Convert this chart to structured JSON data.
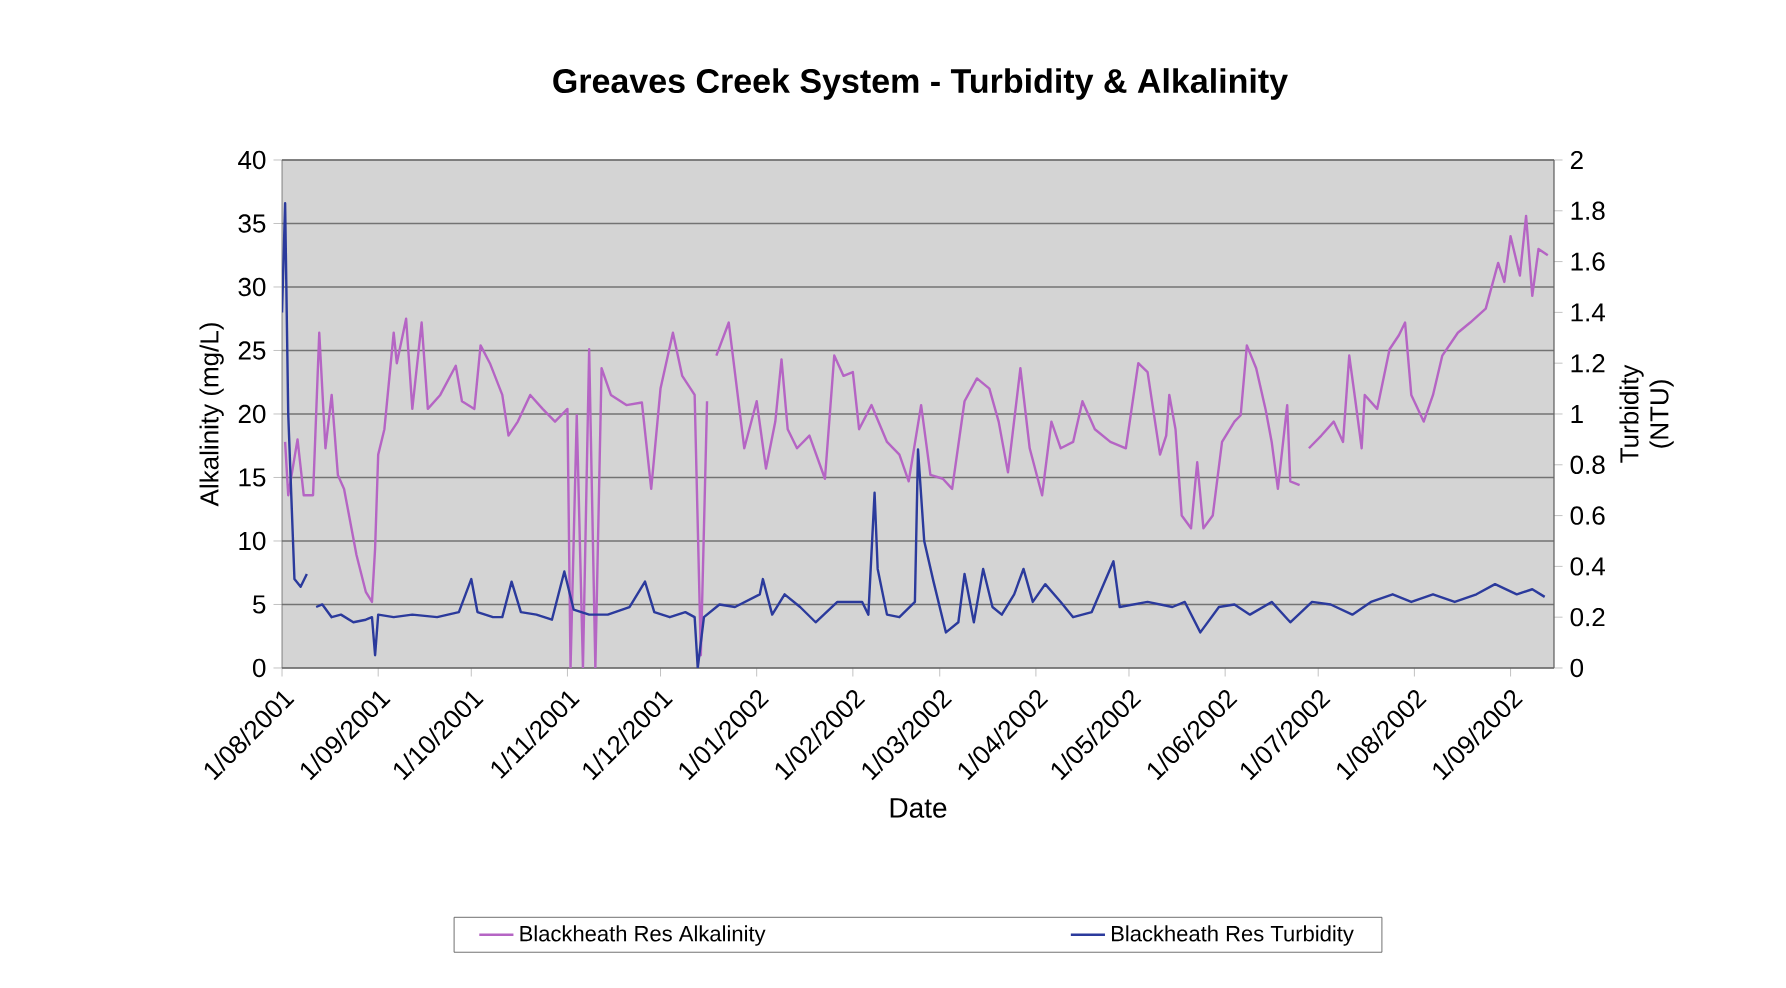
{
  "chart_data": {
    "type": "line",
    "title": "Greaves Creek System - Turbidity & Alkalinity",
    "xlabel": "Date",
    "ylabel": "Alkalinity (mg/L)",
    "y2label": "Turbidity (NTU)",
    "xlim": [
      "2001-08-01",
      "2002-09-15"
    ],
    "xticks": [
      {
        "value": "2001-08-01",
        "label": "1/08/2001"
      },
      {
        "value": "2001-09-01",
        "label": "1/09/2001"
      },
      {
        "value": "2001-10-01",
        "label": "1/10/2001"
      },
      {
        "value": "2001-11-01",
        "label": "1/11/2001"
      },
      {
        "value": "2001-12-01",
        "label": "1/12/2001"
      },
      {
        "value": "2002-01-01",
        "label": "1/01/2002"
      },
      {
        "value": "2002-02-01",
        "label": "1/02/2002"
      },
      {
        "value": "2002-03-01",
        "label": "1/03/2002"
      },
      {
        "value": "2002-04-01",
        "label": "1/04/2002"
      },
      {
        "value": "2002-05-01",
        "label": "1/05/2002"
      },
      {
        "value": "2002-06-01",
        "label": "1/06/2002"
      },
      {
        "value": "2002-07-01",
        "label": "1/07/2002"
      },
      {
        "value": "2002-08-01",
        "label": "1/08/2002"
      },
      {
        "value": "2002-09-01",
        "label": "1/09/2002"
      }
    ],
    "ylim": [
      0,
      40
    ],
    "yticks": [
      0,
      5,
      10,
      15,
      20,
      25,
      30,
      35,
      40
    ],
    "y2lim": [
      0,
      2
    ],
    "y2ticks": [
      0,
      0.2,
      0.4,
      0.6,
      0.8,
      1,
      1.2,
      1.4,
      1.6,
      1.8,
      2
    ],
    "grid": "y",
    "legend": "bottom",
    "marker": "none",
    "line_style": "solid",
    "series": [
      {
        "name": "Blackheath Res Alkalinity",
        "color": "#b565c4",
        "x": [
          "2001-08-02",
          "2001-08-03",
          "2001-08-06",
          "2001-08-08",
          "2001-08-11",
          "2001-08-13",
          "2001-08-15",
          "2001-08-17",
          "2001-08-19",
          "2001-08-21",
          "2001-08-25",
          "2001-08-28",
          "2001-08-30",
          "2001-08-31",
          "2001-09-01",
          "2001-09-03",
          "2001-09-06",
          "2001-09-07",
          "2001-09-10",
          "2001-09-12",
          "2001-09-15",
          "2001-09-17",
          "2001-09-21",
          "2001-09-26",
          "2001-09-28",
          "2001-10-02",
          "2001-10-04",
          "2001-10-07",
          "2001-10-11",
          "2001-10-13",
          "2001-10-16",
          "2001-10-20",
          "2001-10-24",
          "2001-10-28",
          "2001-11-01",
          "2001-11-02",
          "2001-11-04",
          "2001-11-06",
          "2001-11-08",
          "2001-11-10",
          "2001-11-12",
          "2001-11-15",
          "2001-11-20",
          "2001-11-25",
          "2001-11-28",
          "2001-12-01",
          "2001-12-05",
          "2001-12-08",
          "2001-12-12",
          "2001-12-14",
          "2001-12-16",
          "2001-12-17",
          "2001-12-19",
          "2001-12-23",
          "2001-12-28",
          "2002-01-01",
          "2002-01-04",
          "2002-01-07",
          "2002-01-09",
          "2002-01-11",
          "2002-01-14",
          "2002-01-18",
          "2002-01-23",
          "2002-01-26",
          "2002-01-29",
          "2002-02-01",
          "2002-02-03",
          "2002-02-07",
          "2002-02-12",
          "2002-02-16",
          "2002-02-19",
          "2002-02-23",
          "2002-02-26",
          "2002-03-02",
          "2002-03-05",
          "2002-03-09",
          "2002-03-13",
          "2002-03-17",
          "2002-03-20",
          "2002-03-23",
          "2002-03-27",
          "2002-03-30",
          "2002-04-03",
          "2002-04-06",
          "2002-04-09",
          "2002-04-13",
          "2002-04-16",
          "2002-04-20",
          "2002-04-25",
          "2002-04-30",
          "2002-05-04",
          "2002-05-07",
          "2002-05-11",
          "2002-05-13",
          "2002-05-14",
          "2002-05-16",
          "2002-05-18",
          "2002-05-21",
          "2002-05-23",
          "2002-05-25",
          "2002-05-28",
          "2002-05-31",
          "2002-06-04",
          "2002-06-06",
          "2002-06-08",
          "2002-06-11",
          "2002-06-14",
          "2002-06-16",
          "2002-06-18",
          "2002-06-21",
          "2002-06-22",
          "2002-06-25",
          "2002-06-26",
          "2002-06-28",
          "2002-07-02",
          "2002-07-06",
          "2002-07-09",
          "2002-07-11",
          "2002-07-13",
          "2002-07-15",
          "2002-07-16",
          "2002-07-20",
          "2002-07-24",
          "2002-07-27",
          "2002-07-29",
          "2002-07-31",
          "2002-08-04",
          "2002-08-07",
          "2002-08-10",
          "2002-08-15",
          "2002-08-19",
          "2002-08-24",
          "2002-08-28",
          "2002-08-30",
          "2002-09-01",
          "2002-09-04",
          "2002-09-06",
          "2002-09-08",
          "2002-09-10",
          "2002-09-13"
        ],
        "values": [
          17.8,
          13.6,
          18,
          13.6,
          13.6,
          26.4,
          17.3,
          21.5,
          15.2,
          14.1,
          8.9,
          6,
          5.2,
          9.4,
          16.8,
          18.8,
          26.4,
          24,
          27.5,
          20.4,
          27.2,
          20.4,
          21.5,
          23.8,
          21,
          20.4,
          25.4,
          24,
          21.5,
          18.3,
          19.4,
          21.5,
          20.4,
          19.4,
          20.4,
          0,
          19.9,
          0,
          25.1,
          0,
          23.6,
          21.5,
          20.7,
          20.9,
          14.1,
          22,
          26.4,
          23,
          21.5,
          1,
          21,
          null,
          24.6,
          27.2,
          17.3,
          21,
          15.7,
          19.4,
          24.3,
          18.8,
          17.3,
          18.3,
          14.9,
          24.6,
          23,
          23.3,
          18.8,
          20.7,
          17.8,
          16.8,
          14.7,
          20.7,
          15.2,
          14.9,
          14.1,
          21,
          22.8,
          22,
          19.4,
          15.4,
          23.6,
          17.3,
          13.6,
          19.4,
          17.3,
          17.8,
          21,
          18.8,
          17.8,
          17.3,
          24,
          23.3,
          16.8,
          18.3,
          21.5,
          18.8,
          12,
          11,
          16.2,
          11,
          12,
          17.8,
          19.4,
          19.9,
          25.4,
          23.6,
          20.4,
          17.8,
          14.1,
          20.7,
          14.7,
          14.4,
          null,
          17.3,
          18.3,
          19.4,
          17.8,
          24.6,
          21,
          17.3,
          21.5,
          20.4,
          25.1,
          26.2,
          27.2,
          21.5,
          19.4,
          21.5,
          24.6,
          26.4,
          27.2,
          28.3,
          31.9,
          30.4,
          34,
          30.9,
          35.6,
          29.3,
          33,
          32.5
        ]
      },
      {
        "name": "Blackheath Res Turbidity",
        "color": "#2b3a9c",
        "axis": "y2",
        "x": [
          "2001-08-01",
          "2001-08-02",
          "2001-08-03",
          "2001-08-05",
          "2001-08-07",
          "2001-08-09",
          "2001-08-10",
          "2001-08-12",
          "2001-08-14",
          "2001-08-17",
          "2001-08-20",
          "2001-08-24",
          "2001-08-28",
          "2001-08-30",
          "2001-08-31",
          "2001-09-01",
          "2001-09-06",
          "2001-09-12",
          "2001-09-20",
          "2001-09-27",
          "2001-10-01",
          "2001-10-03",
          "2001-10-08",
          "2001-10-11",
          "2001-10-14",
          "2001-10-17",
          "2001-10-22",
          "2001-10-27",
          "2001-10-31",
          "2001-11-03",
          "2001-11-08",
          "2001-11-14",
          "2001-11-21",
          "2001-11-26",
          "2001-11-29",
          "2001-12-04",
          "2001-12-09",
          "2001-12-12",
          "2001-12-13",
          "2001-12-15",
          "2001-12-20",
          "2001-12-25",
          "2002-01-02",
          "2002-01-03",
          "2002-01-06",
          "2002-01-10",
          "2002-01-15",
          "2002-01-20",
          "2002-01-27",
          "2002-02-04",
          "2002-02-06",
          "2002-02-08",
          "2002-02-09",
          "2002-02-12",
          "2002-02-16",
          "2002-02-21",
          "2002-02-22",
          "2002-02-24",
          "2002-02-27",
          "2002-03-03",
          "2002-03-07",
          "2002-03-09",
          "2002-03-12",
          "2002-03-15",
          "2002-03-18",
          "2002-03-21",
          "2002-03-25",
          "2002-03-28",
          "2002-03-31",
          "2002-04-04",
          "2002-04-09",
          "2002-04-13",
          "2002-04-19",
          "2002-04-26",
          "2002-04-28",
          "2002-05-07",
          "2002-05-15",
          "2002-05-19",
          "2002-05-24",
          "2002-05-30",
          "2002-06-04",
          "2002-06-09",
          "2002-06-16",
          "2002-06-22",
          "2002-06-29",
          "2002-07-05",
          "2002-07-12",
          "2002-07-18",
          "2002-07-25",
          "2002-07-31",
          "2002-08-07",
          "2002-08-14",
          "2002-08-21",
          "2002-08-27",
          "2002-09-03",
          "2002-09-08",
          "2002-09-12"
        ],
        "values": [
          1.4,
          1.83,
          1,
          0.35,
          0.32,
          0.37,
          null,
          0.24,
          0.25,
          0.2,
          0.21,
          0.18,
          0.19,
          0.2,
          0.05,
          0.21,
          0.2,
          0.21,
          0.2,
          0.22,
          0.35,
          0.22,
          0.2,
          0.2,
          0.34,
          0.22,
          0.21,
          0.19,
          0.38,
          0.23,
          0.21,
          0.21,
          0.24,
          0.34,
          0.22,
          0.2,
          0.22,
          0.2,
          0,
          0.2,
          0.25,
          0.24,
          0.29,
          0.35,
          0.21,
          0.29,
          0.24,
          0.18,
          0.26,
          0.26,
          0.21,
          0.69,
          0.39,
          0.21,
          0.2,
          0.26,
          0.86,
          0.5,
          0.34,
          0.14,
          0.18,
          0.37,
          0.18,
          0.39,
          0.24,
          0.21,
          0.29,
          0.39,
          0.26,
          0.33,
          0.26,
          0.2,
          0.22,
          0.42,
          0.24,
          0.26,
          0.24,
          0.26,
          0.14,
          0.24,
          0.25,
          0.21,
          0.26,
          0.18,
          0.26,
          0.25,
          0.21,
          0.26,
          0.29,
          0.26,
          0.29,
          0.26,
          0.29,
          0.33,
          0.29,
          0.31,
          0.28
        ]
      }
    ]
  }
}
